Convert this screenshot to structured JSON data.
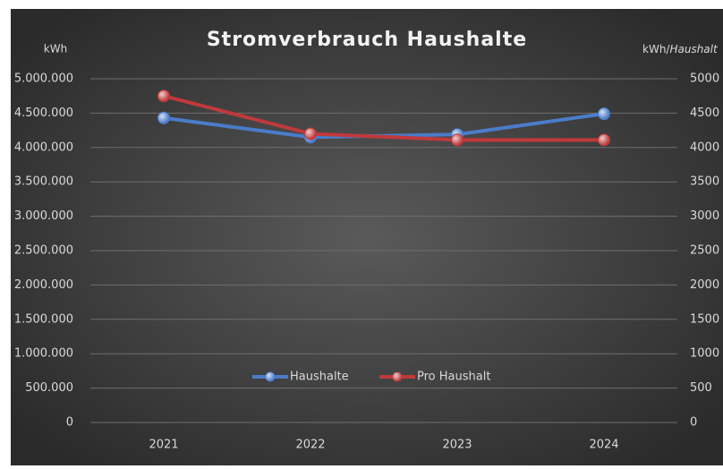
{
  "chart_data": {
    "type": "line",
    "title": "Stromverbrauch Haushalte",
    "y_label": "kWh",
    "y2_label": {
      "text": "kWh/",
      "italic": "Haushalt"
    },
    "categories": [
      "2021",
      "2022",
      "2023",
      "2024"
    ],
    "series": [
      {
        "name": "Haushalte",
        "color": "#4a7cc9",
        "values": [
          4430000,
          4150000,
          4190000,
          4490000
        ]
      },
      {
        "name": "Pro Haushalt",
        "color": "#c0393b",
        "axis": "y2",
        "values": [
          4750,
          4200,
          4110,
          4110
        ]
      }
    ],
    "ylim": [
      0,
      5000000
    ],
    "yticks": [
      0,
      {
        "value": 500000,
        "label": "500.000"
      },
      {
        "value": 1000000,
        "label": "1.000.000"
      },
      {
        "value": 1500000,
        "label": "1.500.000"
      },
      {
        "value": 2000000,
        "label": "2.000.000"
      },
      {
        "value": 2500000,
        "label": "2.500.000"
      },
      {
        "value": 3000000,
        "label": "3.000.000"
      },
      {
        "value": 3500000,
        "label": "3.500.000"
      },
      {
        "value": 4000000,
        "label": "4.000.000"
      },
      {
        "value": 4500000,
        "label": "4.500.000"
      },
      {
        "value": 5000000,
        "label": "5.000.000"
      }
    ],
    "y2lim": [
      0,
      5000
    ],
    "y2ticks": [
      0,
      500,
      1000,
      1500,
      2000,
      2500,
      3000,
      3500,
      4000,
      4500,
      5000
    ],
    "grid": true,
    "legend": "bottom"
  }
}
